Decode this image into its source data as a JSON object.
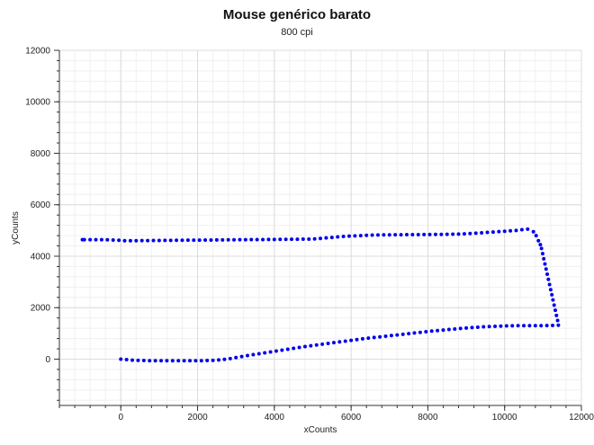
{
  "chart_data": {
    "type": "scatter",
    "title": "Mouse genérico barato",
    "subtitle": "800 cpi",
    "xlabel": "xCounts",
    "ylabel": "yCounts",
    "xlim": [
      -1600,
      12000
    ],
    "ylim": [
      -1800,
      12000
    ],
    "xticks": [
      0,
      2000,
      4000,
      6000,
      8000,
      10000,
      12000
    ],
    "yticks": [
      0,
      2000,
      4000,
      6000,
      8000,
      10000,
      12000
    ],
    "grid": true,
    "point_color": "#0000ee",
    "series": [
      {
        "values": [
          [
            0,
            0
          ],
          [
            150,
            -20
          ],
          [
            300,
            -40
          ],
          [
            450,
            -50
          ],
          [
            600,
            -55
          ],
          [
            750,
            -60
          ],
          [
            900,
            -60
          ],
          [
            1050,
            -60
          ],
          [
            1200,
            -60
          ],
          [
            1350,
            -60
          ],
          [
            1500,
            -60
          ],
          [
            1650,
            -60
          ],
          [
            1800,
            -60
          ],
          [
            1950,
            -60
          ],
          [
            2100,
            -60
          ],
          [
            2250,
            -55
          ],
          [
            2400,
            -50
          ],
          [
            2550,
            -30
          ],
          [
            2700,
            -10
          ],
          [
            2850,
            20
          ],
          [
            3000,
            60
          ],
          [
            3150,
            100
          ],
          [
            3300,
            140
          ],
          [
            3450,
            175
          ],
          [
            3600,
            210
          ],
          [
            3750,
            245
          ],
          [
            3900,
            280
          ],
          [
            4050,
            315
          ],
          [
            4200,
            350
          ],
          [
            4350,
            385
          ],
          [
            4500,
            420
          ],
          [
            4650,
            455
          ],
          [
            4800,
            490
          ],
          [
            4950,
            520
          ],
          [
            5100,
            550
          ],
          [
            5250,
            580
          ],
          [
            5400,
            610
          ],
          [
            5550,
            640
          ],
          [
            5700,
            670
          ],
          [
            5850,
            700
          ],
          [
            6000,
            730
          ],
          [
            6150,
            760
          ],
          [
            6300,
            790
          ],
          [
            6450,
            815
          ],
          [
            6600,
            840
          ],
          [
            6750,
            865
          ],
          [
            6900,
            890
          ],
          [
            7050,
            915
          ],
          [
            7200,
            940
          ],
          [
            7350,
            965
          ],
          [
            7500,
            990
          ],
          [
            7650,
            1015
          ],
          [
            7800,
            1040
          ],
          [
            7950,
            1065
          ],
          [
            8100,
            1090
          ],
          [
            8250,
            1110
          ],
          [
            8400,
            1130
          ],
          [
            8550,
            1150
          ],
          [
            8700,
            1170
          ],
          [
            8850,
            1190
          ],
          [
            9000,
            1210
          ],
          [
            9150,
            1225
          ],
          [
            9300,
            1240
          ],
          [
            9450,
            1255
          ],
          [
            9600,
            1265
          ],
          [
            9750,
            1275
          ],
          [
            9900,
            1285
          ],
          [
            10050,
            1290
          ],
          [
            10200,
            1295
          ],
          [
            10350,
            1300
          ],
          [
            10500,
            1300
          ],
          [
            10650,
            1300
          ],
          [
            10800,
            1300
          ],
          [
            10950,
            1300
          ],
          [
            11100,
            1305
          ],
          [
            11250,
            1310
          ],
          [
            11400,
            1320
          ],
          [
            11380,
            1500
          ],
          [
            11350,
            1700
          ],
          [
            11320,
            1900
          ],
          [
            11290,
            2100
          ],
          [
            11260,
            2300
          ],
          [
            11230,
            2500
          ],
          [
            11200,
            2700
          ],
          [
            11170,
            2900
          ],
          [
            11140,
            3100
          ],
          [
            11110,
            3300
          ],
          [
            11080,
            3500
          ],
          [
            11050,
            3700
          ],
          [
            11020,
            3900
          ],
          [
            10990,
            4100
          ],
          [
            10960,
            4300
          ],
          [
            10930,
            4450
          ],
          [
            10880,
            4600
          ],
          [
            10820,
            4800
          ],
          [
            10750,
            4950
          ],
          [
            10600,
            5050
          ],
          [
            10450,
            5030
          ],
          [
            10300,
            5000
          ],
          [
            10150,
            4985
          ],
          [
            10000,
            4970
          ],
          [
            9850,
            4955
          ],
          [
            9700,
            4940
          ],
          [
            9550,
            4925
          ],
          [
            9400,
            4910
          ],
          [
            9250,
            4895
          ],
          [
            9100,
            4880
          ],
          [
            8950,
            4870
          ],
          [
            8800,
            4860
          ],
          [
            8650,
            4855
          ],
          [
            8500,
            4850
          ],
          [
            8350,
            4848
          ],
          [
            8200,
            4846
          ],
          [
            8050,
            4844
          ],
          [
            7900,
            4842
          ],
          [
            7750,
            4840
          ],
          [
            7600,
            4838
          ],
          [
            7450,
            4836
          ],
          [
            7300,
            4834
          ],
          [
            7150,
            4832
          ],
          [
            7000,
            4830
          ],
          [
            6850,
            4828
          ],
          [
            6700,
            4826
          ],
          [
            6550,
            4820
          ],
          [
            6400,
            4810
          ],
          [
            6250,
            4800
          ],
          [
            6100,
            4790
          ],
          [
            5950,
            4780
          ],
          [
            5800,
            4770
          ],
          [
            5650,
            4750
          ],
          [
            5500,
            4730
          ],
          [
            5350,
            4710
          ],
          [
            5200,
            4690
          ],
          [
            5050,
            4670
          ],
          [
            4900,
            4665
          ],
          [
            4750,
            4662
          ],
          [
            4600,
            4660
          ],
          [
            4450,
            4658
          ],
          [
            4300,
            4656
          ],
          [
            4150,
            4654
          ],
          [
            4000,
            4652
          ],
          [
            3850,
            4650
          ],
          [
            3700,
            4648
          ],
          [
            3550,
            4646
          ],
          [
            3400,
            4644
          ],
          [
            3250,
            4642
          ],
          [
            3100,
            4640
          ],
          [
            2950,
            4638
          ],
          [
            2800,
            4636
          ],
          [
            2650,
            4634
          ],
          [
            2500,
            4632
          ],
          [
            2350,
            4630
          ],
          [
            2200,
            4628
          ],
          [
            2050,
            4626
          ],
          [
            1900,
            4624
          ],
          [
            1750,
            4622
          ],
          [
            1600,
            4620
          ],
          [
            1450,
            4618
          ],
          [
            1300,
            4616
          ],
          [
            1150,
            4614
          ],
          [
            1000,
            4612
          ],
          [
            850,
            4610
          ],
          [
            700,
            4608
          ],
          [
            550,
            4606
          ],
          [
            400,
            4604
          ],
          [
            250,
            4602
          ],
          [
            100,
            4600
          ],
          [
            -50,
            4620
          ],
          [
            -200,
            4630
          ],
          [
            -350,
            4635
          ],
          [
            -500,
            4640
          ],
          [
            -650,
            4640
          ],
          [
            -800,
            4640
          ],
          [
            -950,
            4640
          ],
          [
            -1000,
            4640
          ]
        ]
      }
    ]
  }
}
